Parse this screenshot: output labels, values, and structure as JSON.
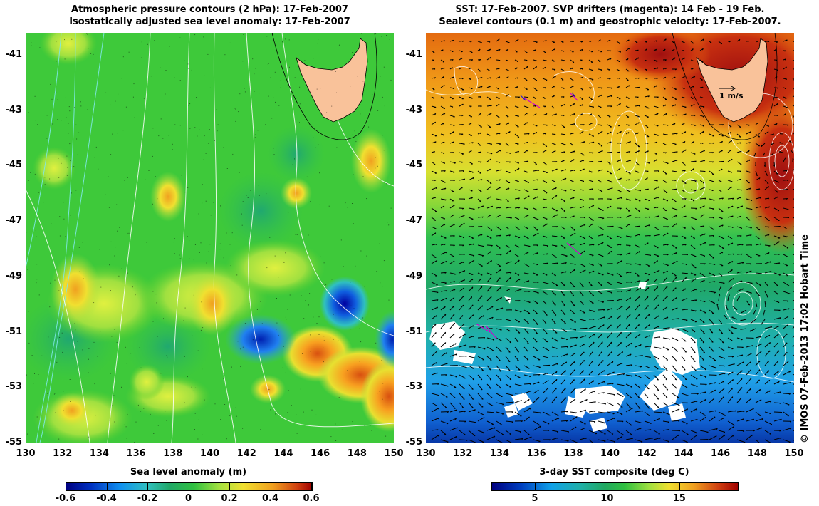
{
  "left_panel": {
    "title_line1": "Atmospheric pressure contours (2 hPa): 17-Feb-2007",
    "title_line2": "Isostatically adjusted sea level anomaly: 17-Feb-2007",
    "colorbar": {
      "label": "Sea level anomaly (m)",
      "ticks": [
        "-0.6",
        "-0.4",
        "-0.2",
        "0",
        "0.2",
        "0.4",
        "0.6"
      ],
      "range": [
        -0.6,
        0.6
      ]
    }
  },
  "right_panel": {
    "title_line1": "SST: 17-Feb-2007. SVP drifters (magenta): 14 Feb - 19 Feb.",
    "title_line2": "Sealevel contours (0.1 m) and geostrophic velocity: 17-Feb-2007.",
    "scale_arrow_label": "1 m/s",
    "colorbar": {
      "label": "3-day SST composite (deg C)",
      "ticks": [
        "5",
        "10",
        "15"
      ],
      "range": [
        2,
        19
      ]
    }
  },
  "axes": {
    "lon_ticks": [
      "130",
      "132",
      "134",
      "136",
      "138",
      "140",
      "142",
      "144",
      "146",
      "148",
      "150"
    ],
    "lat_ticks": [
      "-41",
      "-43",
      "-45",
      "-47",
      "-49",
      "-51",
      "-53",
      "-55"
    ],
    "lon_range": [
      130,
      150
    ],
    "lat_range": [
      -55,
      -40.2
    ]
  },
  "credit": "© IMOS 07-Feb-2013 17:02 Hobart Time",
  "colors": {
    "land": "#f9c29a",
    "drifters": "#d000d0"
  }
}
